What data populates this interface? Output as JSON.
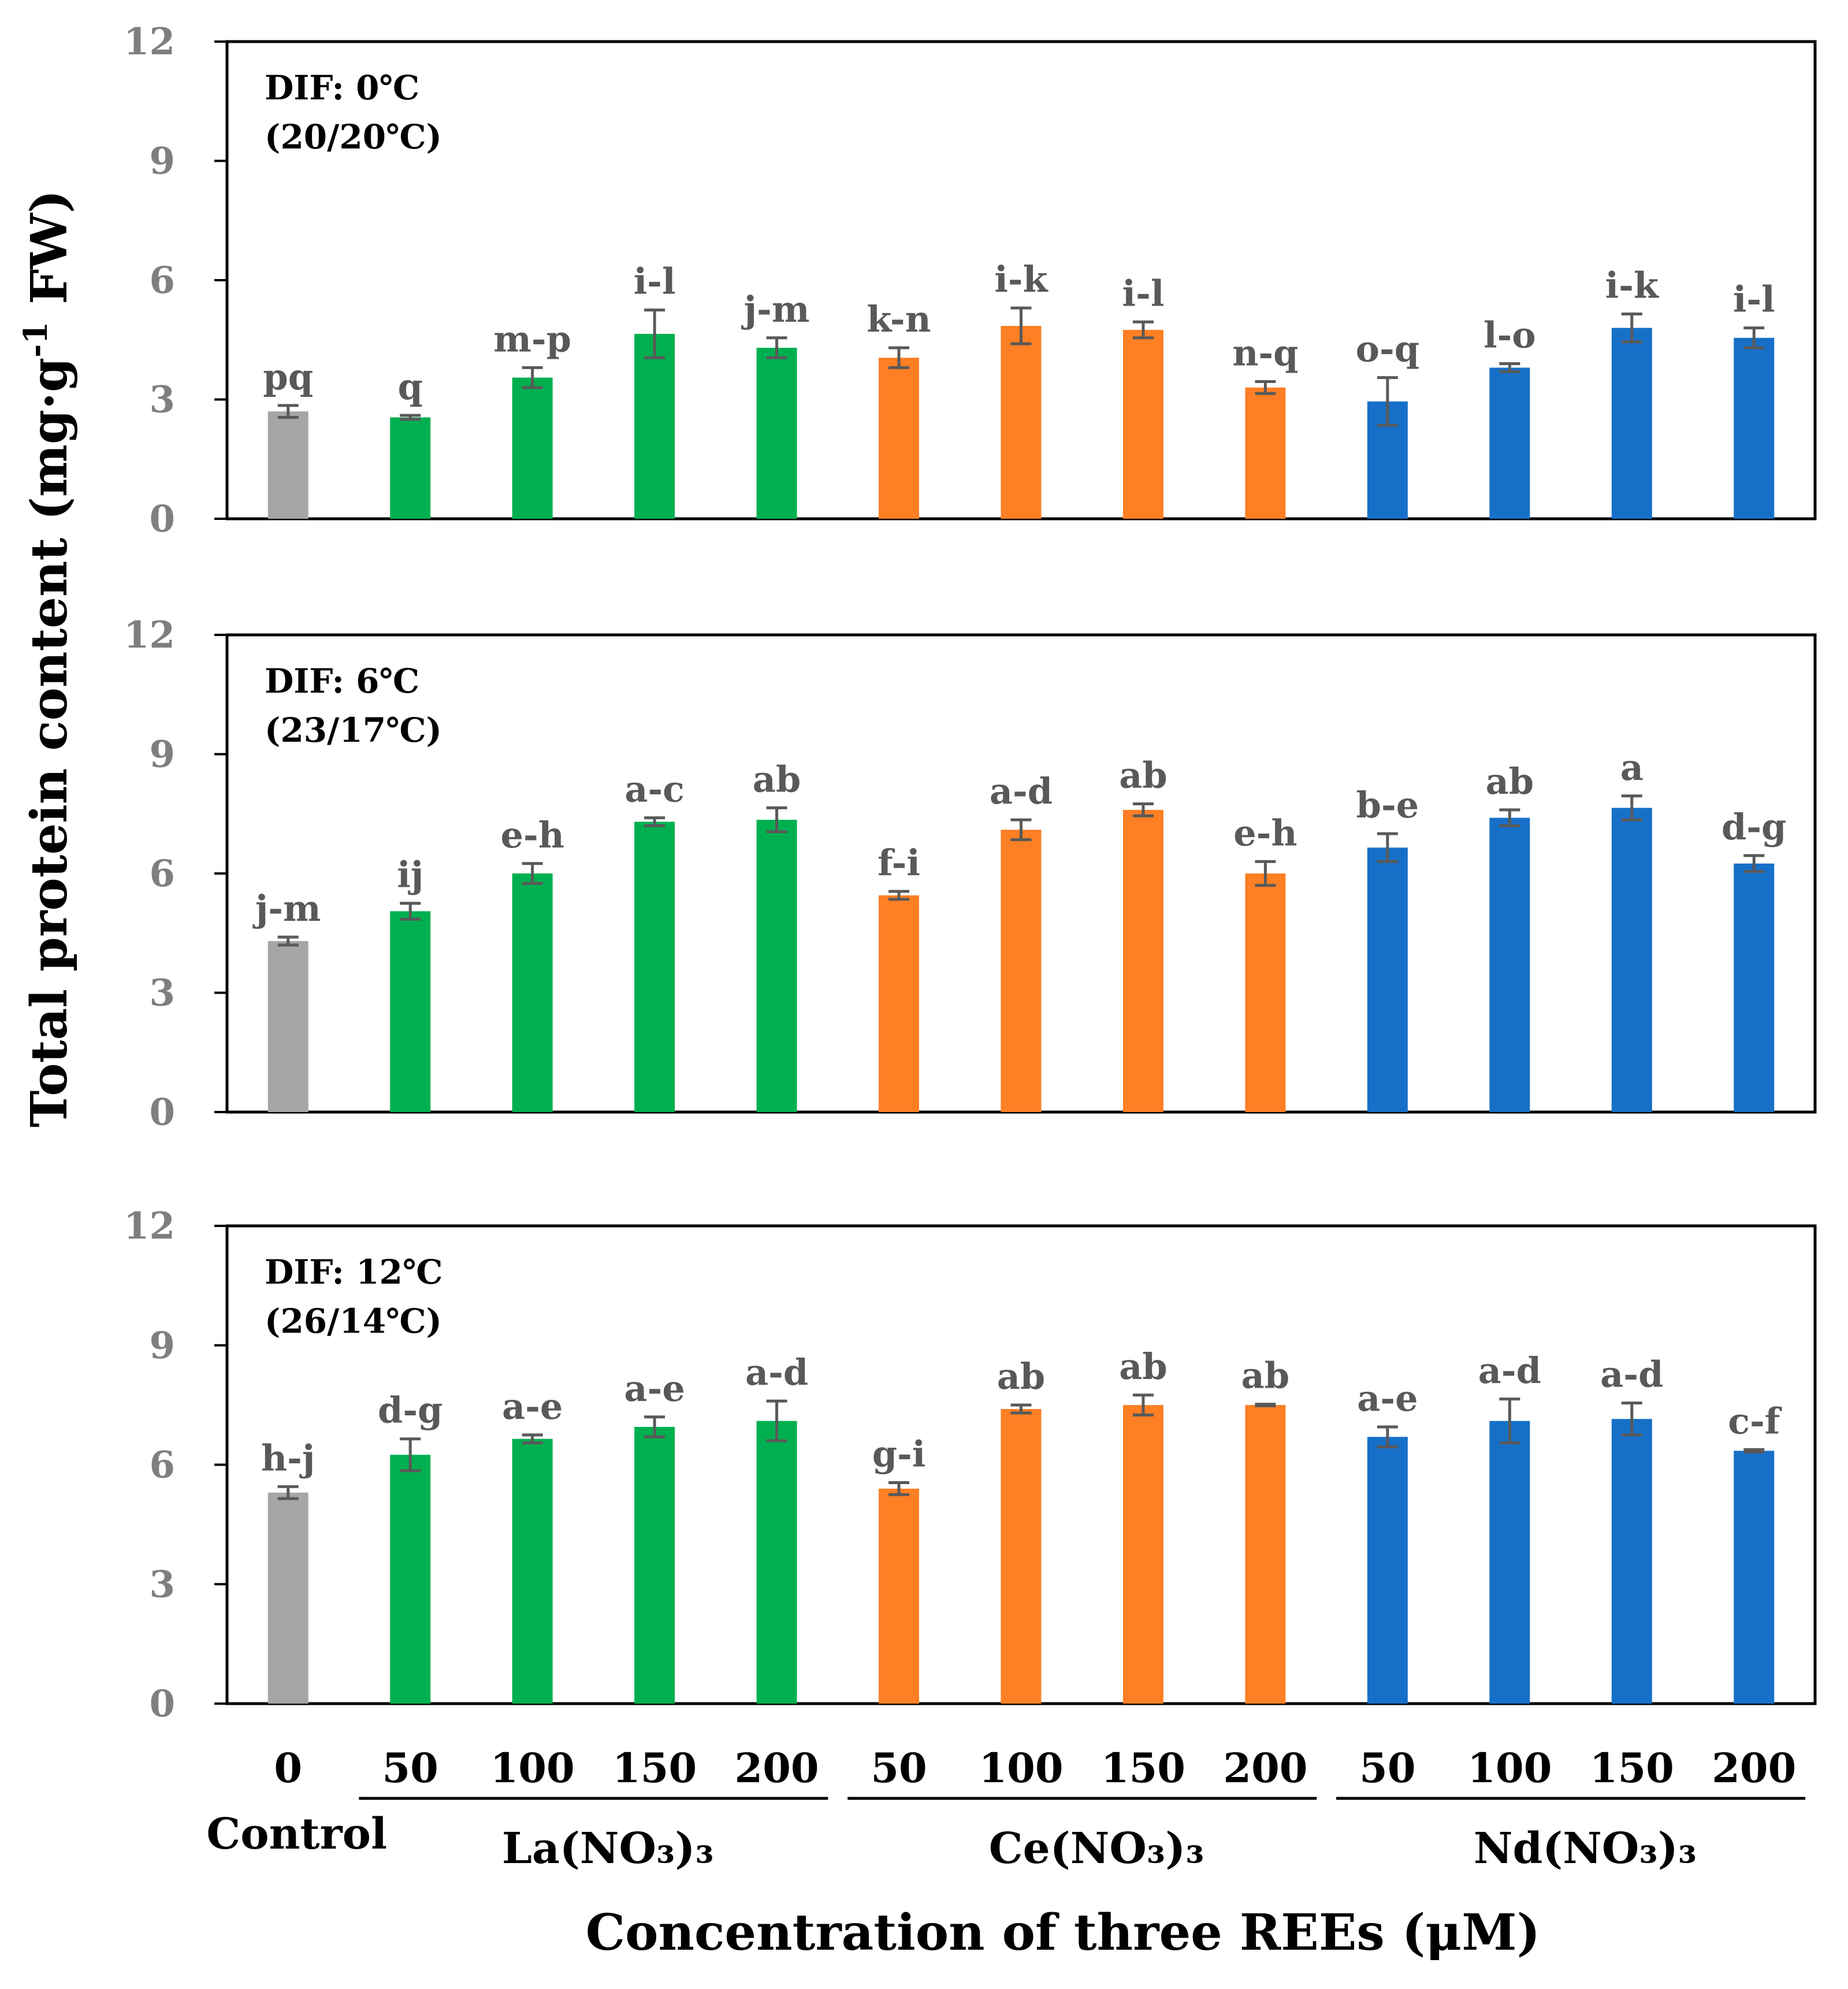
{
  "chart_data": {
    "type": "bar",
    "ylabel": "Total protein content (mg·g-1 FW)",
    "ylabel_parts": {
      "main": "Total protein content (mg·g",
      "sup": "-1",
      "tail": " FW)"
    },
    "xlabel": "Concentration of three REEs (μM)",
    "ylim": [
      0,
      12
    ],
    "yticks": [
      "0",
      "3",
      "6",
      "9",
      "12"
    ],
    "categories": [
      "0",
      "50",
      "100",
      "150",
      "200",
      "50",
      "100",
      "150",
      "200",
      "50",
      "100",
      "150",
      "200"
    ],
    "groups": [
      {
        "label": "Control",
        "start": 0,
        "end": 0,
        "color": "#a6a6a6",
        "underline": false
      },
      {
        "label": "La(NO₃)₃",
        "start": 1,
        "end": 4,
        "color": "#00b050",
        "underline": true
      },
      {
        "label": "Ce(NO₃)₃",
        "start": 5,
        "end": 8,
        "color": "#fe7f24",
        "underline": true
      },
      {
        "label": "Nd(NO₃)₃",
        "start": 9,
        "end": 12,
        "color": "#1770c8",
        "underline": true
      }
    ],
    "panels": [
      {
        "condition_line1": "DIF: 0℃",
        "condition_line2": "(20/20℃)",
        "values": [
          2.7,
          2.55,
          3.55,
          4.65,
          4.3,
          4.05,
          4.85,
          4.75,
          3.3,
          2.95,
          3.8,
          4.8,
          4.55
        ],
        "errors": [
          0.15,
          0.05,
          0.25,
          0.6,
          0.25,
          0.25,
          0.45,
          0.2,
          0.15,
          0.6,
          0.1,
          0.35,
          0.25
        ],
        "letters": [
          "pq",
          "q",
          "m-p",
          "i-l",
          "j-m",
          "k-n",
          "i-k",
          "i-l",
          "n-q",
          "o-q",
          "l-o",
          "i-k",
          "i-l"
        ]
      },
      {
        "condition_line1": "DIF: 6℃",
        "condition_line2": "(23/17℃)",
        "values": [
          4.3,
          5.05,
          6.0,
          7.3,
          7.35,
          5.45,
          7.1,
          7.6,
          6.0,
          6.65,
          7.4,
          7.65,
          6.25
        ],
        "errors": [
          0.1,
          0.2,
          0.25,
          0.1,
          0.3,
          0.1,
          0.25,
          0.15,
          0.3,
          0.35,
          0.2,
          0.3,
          0.2
        ],
        "letters": [
          "j-m",
          "ij",
          "e-h",
          "a-c",
          "ab",
          "f-i",
          "a-d",
          "ab",
          "e-h",
          "b-e",
          "ab",
          "a",
          "d-g"
        ]
      },
      {
        "condition_line1": "DIF: 12℃",
        "condition_line2": "(26/14℃)",
        "values": [
          5.3,
          6.25,
          6.65,
          6.95,
          7.1,
          5.4,
          7.4,
          7.5,
          7.5,
          6.7,
          7.1,
          7.15,
          6.35
        ],
        "errors": [
          0.15,
          0.4,
          0.1,
          0.25,
          0.5,
          0.15,
          0.1,
          0.25,
          0.02,
          0.25,
          0.55,
          0.4,
          0.03
        ],
        "letters": [
          "h-j",
          "d-g",
          "a-e",
          "a-e",
          "a-d",
          "g-i",
          "ab",
          "ab",
          "ab",
          "a-e",
          "a-d",
          "a-d",
          "c-f"
        ]
      }
    ]
  }
}
